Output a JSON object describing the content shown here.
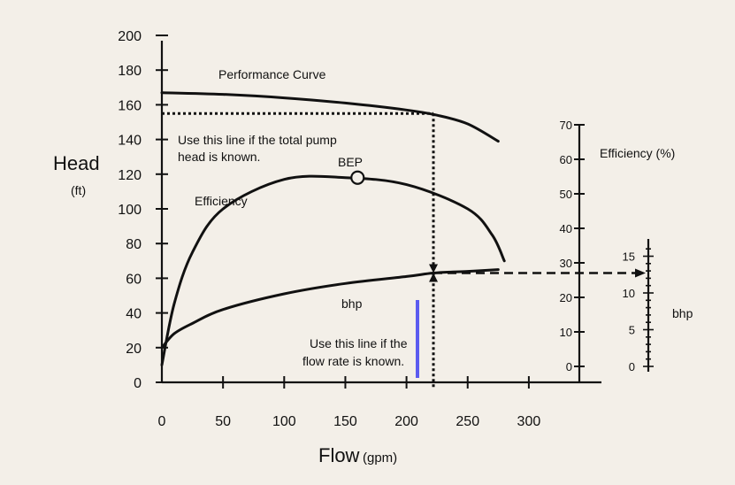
{
  "chart_data": {
    "type": "line",
    "xlabel": "Flow",
    "xunit": "(gpm)",
    "ylabel": "Head",
    "yunit": "(ft)",
    "x_ticks": [
      "0",
      "50",
      "100",
      "150",
      "200",
      "250",
      "300"
    ],
    "y_ticks": [
      "0",
      "20",
      "40",
      "60",
      "80",
      "100",
      "120",
      "140",
      "160",
      "180",
      "200"
    ],
    "xlim": [
      0,
      300
    ],
    "ylim": [
      0,
      200
    ],
    "series": [
      {
        "name": "Performance Curve",
        "x": [
          0,
          50,
          100,
          150,
          200,
          225,
          250,
          275
        ],
        "y": [
          167,
          166,
          164,
          161,
          157,
          154,
          149,
          139
        ]
      },
      {
        "name": "Efficiency",
        "x": [
          0,
          10,
          25,
          50,
          100,
          150,
          200,
          250,
          270,
          280
        ],
        "y": [
          10,
          45,
          75,
          100,
          117,
          118,
          114,
          100,
          85,
          70
        ]
      },
      {
        "name": "bhp",
        "x": [
          0,
          10,
          25,
          50,
          100,
          150,
          200,
          222,
          250,
          275
        ],
        "y": [
          20,
          28,
          34,
          42,
          51,
          57,
          61,
          63,
          64,
          65
        ]
      }
    ],
    "bep": {
      "label": "BEP",
      "x": 160,
      "y": 118
    },
    "head_guide": {
      "label": "Use this line if the total pump head is known.",
      "head": 155,
      "flow": 222
    },
    "flow_guide": {
      "label": "Use this line if the flow rate is known.",
      "flow": 222,
      "head": 63
    },
    "efficiency_axis": {
      "label": "Efficiency (%)",
      "ticks": [
        "0",
        "10",
        "20",
        "30",
        "40",
        "50",
        "60",
        "70"
      ]
    },
    "bhp_axis": {
      "label": "bhp",
      "ticks": [
        "0",
        "5",
        "10",
        "15"
      ]
    },
    "grid": false,
    "legend": "none"
  },
  "labels": {
    "head": "Head",
    "head_unit": "(ft)",
    "flow": "Flow",
    "flow_unit": "(gpm)",
    "performance": "Performance Curve",
    "efficiency": "Efficiency",
    "bhp_curve": "bhp",
    "bep": "BEP",
    "head_note_1": "Use this line if the total pump",
    "head_note_2": "head is known.",
    "flow_note_1": "Use this line if the",
    "flow_note_2": "flow rate is known.",
    "eff_axis": "Efficiency (%)",
    "bhp_axis": "bhp"
  },
  "colors": {
    "ink": "#111111",
    "marker": "#5b5bf0",
    "background": "#f3efe8"
  }
}
